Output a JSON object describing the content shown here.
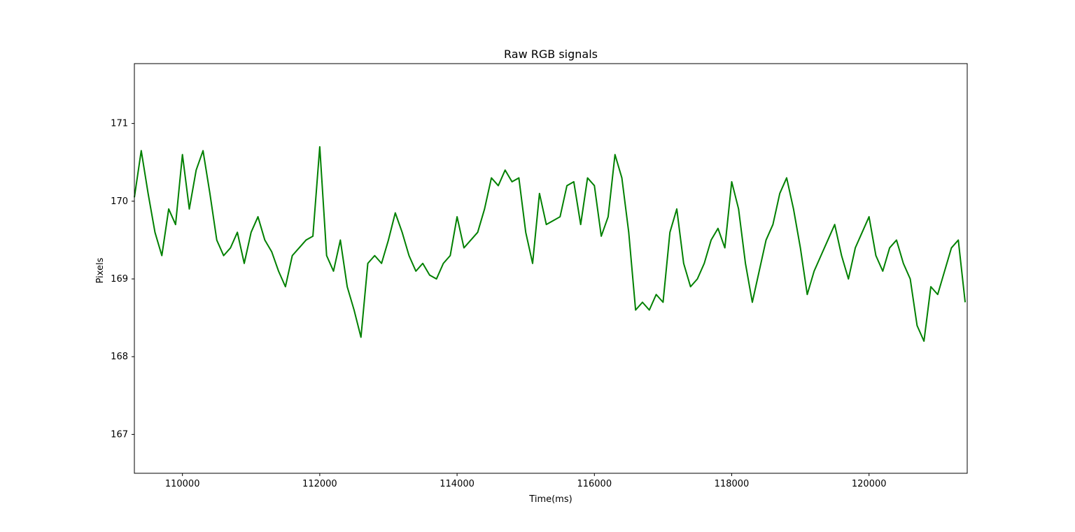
{
  "chart_data": {
    "type": "line",
    "title": "Raw RGB signals",
    "xlabel": "Time(ms)",
    "ylabel": "Pixels",
    "xlim": [
      109300,
      121430
    ],
    "ylim": [
      166.5,
      171.77
    ],
    "xticks": [
      110000,
      112000,
      114000,
      116000,
      118000,
      120000
    ],
    "yticks": [
      167,
      168,
      169,
      170,
      171
    ],
    "grid": false,
    "legend": "none",
    "series": [
      {
        "color": "#008000",
        "x": [
          109300,
          109400,
          109500,
          109600,
          109700,
          109800,
          109900,
          110000,
          110100,
          110200,
          110300,
          110400,
          110500,
          110600,
          110700,
          110800,
          110900,
          111000,
          111100,
          111200,
          111300,
          111400,
          111500,
          111600,
          111700,
          111800,
          111900,
          112000,
          112100,
          112200,
          112300,
          112400,
          112500,
          112600,
          112700,
          112800,
          112900,
          113000,
          113100,
          113200,
          113300,
          113400,
          113500,
          113600,
          113700,
          113800,
          113900,
          114000,
          114100,
          114200,
          114300,
          114400,
          114500,
          114600,
          114700,
          114800,
          114900,
          115000,
          115100,
          115200,
          115300,
          115400,
          115500,
          115600,
          115700,
          115800,
          115900,
          116000,
          116100,
          116200,
          116300,
          116400,
          116500,
          116600,
          116700,
          116800,
          116900,
          117000,
          117100,
          117200,
          117300,
          117400,
          117500,
          117600,
          117700,
          117800,
          117900,
          118000,
          118100,
          118200,
          118300,
          118400,
          118500,
          118600,
          118700,
          118800,
          118900,
          119000,
          119100,
          119200,
          119300,
          119400,
          119500,
          119600,
          119700,
          119800,
          119900,
          120000,
          120100,
          120200,
          120300,
          120400,
          120500,
          120600,
          120700,
          120800,
          120900,
          121000,
          121100,
          121200,
          121300,
          121400
        ],
        "y": [
          170.05,
          170.65,
          170.1,
          169.6,
          169.3,
          169.9,
          169.7,
          170.6,
          169.9,
          170.4,
          170.65,
          170.1,
          169.5,
          169.3,
          169.4,
          169.6,
          169.2,
          169.6,
          169.8,
          169.5,
          169.35,
          169.1,
          168.9,
          169.3,
          169.4,
          169.5,
          169.55,
          170.7,
          169.3,
          169.1,
          169.5,
          168.9,
          168.6,
          168.25,
          169.2,
          169.3,
          169.2,
          169.5,
          169.85,
          169.6,
          169.3,
          169.1,
          169.2,
          169.05,
          169.0,
          169.2,
          169.3,
          169.8,
          169.4,
          169.5,
          169.6,
          169.9,
          170.3,
          170.2,
          170.4,
          170.25,
          170.3,
          169.6,
          169.2,
          170.1,
          169.7,
          169.75,
          169.8,
          170.2,
          170.25,
          169.7,
          170.3,
          170.2,
          169.55,
          169.8,
          170.6,
          170.3,
          169.6,
          168.6,
          168.7,
          168.6,
          168.8,
          168.7,
          169.6,
          169.9,
          169.2,
          168.9,
          169.0,
          169.2,
          169.5,
          169.65,
          169.4,
          170.25,
          169.9,
          169.2,
          168.7,
          169.1,
          169.5,
          169.7,
          170.1,
          170.3,
          169.9,
          169.4,
          168.8,
          169.1,
          169.3,
          169.5,
          169.7,
          169.3,
          169.0,
          169.4,
          169.6,
          169.8,
          169.3,
          169.1,
          169.4,
          169.5,
          169.2,
          169.0,
          168.4,
          168.2,
          168.9,
          168.8,
          169.1,
          169.4,
          169.5,
          168.7
        ]
      }
    ]
  }
}
